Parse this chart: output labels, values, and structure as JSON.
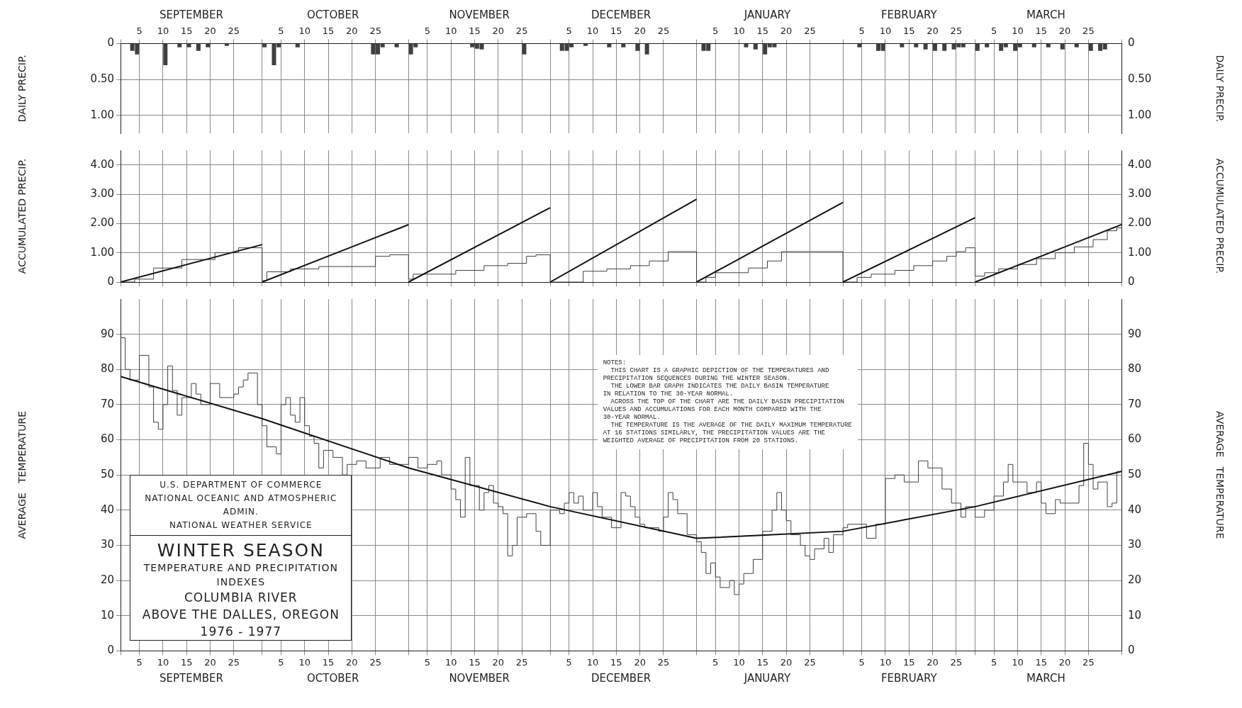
{
  "chart_data": [
    {
      "type": "bar",
      "ylabel": "DAILY PRECIP.",
      "y2label": "DAILY PRECIP.",
      "series": [
        {
          "color": "#404040",
          "x": [
            "1976-09-03",
            "1976-09-04",
            "1976-09-10",
            "1976-09-13",
            "1976-09-15",
            "1976-09-17",
            "1976-09-19",
            "1976-09-23",
            "1976-10-01",
            "1976-10-03",
            "1976-10-04",
            "1976-10-08",
            "1976-10-24",
            "1976-10-25",
            "1976-10-26",
            "1976-10-29",
            "1976-11-01",
            "1976-11-02",
            "1976-11-14",
            "1976-11-15",
            "1976-11-16",
            "1976-11-25",
            "1976-12-03",
            "1976-12-04",
            "1976-12-05",
            "1976-12-08",
            "1976-12-13",
            "1976-12-16",
            "1976-12-19",
            "1976-12-21",
            "1977-01-02",
            "1977-01-03",
            "1977-01-11",
            "1977-01-13",
            "1977-01-15",
            "1977-01-16",
            "1977-01-17",
            "1977-02-04",
            "1977-02-08",
            "1977-02-09",
            "1977-02-13",
            "1977-02-16",
            "1977-02-18",
            "1977-02-20",
            "1977-02-22",
            "1977-02-24",
            "1977-02-25",
            "1977-02-26",
            "1977-03-01",
            "1977-03-03",
            "1977-03-06",
            "1977-03-07",
            "1977-03-09",
            "1977-03-10",
            "1977-03-13",
            "1977-03-16",
            "1977-03-19",
            "1977-03-22",
            "1977-03-25",
            "1977-03-27",
            "1977-03-28"
          ],
          "values": [
            0.1,
            0.15,
            0.3,
            0.05,
            0.05,
            0.1,
            0.05,
            0.03,
            0.05,
            0.3,
            0.05,
            0.05,
            0.15,
            0.15,
            0.05,
            0.05,
            0.15,
            0.05,
            0.05,
            0.07,
            0.08,
            0.15,
            0.1,
            0.1,
            0.05,
            0.03,
            0.05,
            0.05,
            0.1,
            0.15,
            0.1,
            0.1,
            0.05,
            0.08,
            0.15,
            0.05,
            0.05,
            0.05,
            0.1,
            0.1,
            0.05,
            0.05,
            0.08,
            0.1,
            0.1,
            0.08,
            0.05,
            0.05,
            0.1,
            0.05,
            0.1,
            0.05,
            0.1,
            0.05,
            0.05,
            0.05,
            0.08,
            0.05,
            0.1,
            0.1,
            0.08
          ]
        }
      ],
      "xlim": [
        "1976-09-01",
        "1977-04-01"
      ],
      "xticks": [
        {
          "value": "1976-09-01",
          "label": null
        },
        {
          "value": "1976-09-05",
          "label": "5"
        },
        {
          "value": "1976-09-10",
          "label": "10"
        },
        {
          "value": "1976-09-15",
          "label": "15"
        },
        {
          "value": "1976-09-20",
          "label": "20"
        },
        {
          "value": "1976-09-25",
          "label": "25"
        },
        {
          "value": "1976-10-01",
          "label": null
        },
        {
          "value": "1976-10-05",
          "label": "5"
        },
        {
          "value": "1976-10-10",
          "label": "10"
        },
        {
          "value": "1976-10-15",
          "label": "15"
        },
        {
          "value": "1976-10-20",
          "label": "20"
        },
        {
          "value": "1976-10-25",
          "label": "25"
        },
        {
          "value": "1976-11-01",
          "label": null
        },
        {
          "value": "1976-11-05",
          "label": "5"
        },
        {
          "value": "1976-11-10",
          "label": "10"
        },
        {
          "value": "1976-11-15",
          "label": "15"
        },
        {
          "value": "1976-11-20",
          "label": "20"
        },
        {
          "value": "1976-11-25",
          "label": "25"
        },
        {
          "value": "1976-12-01",
          "label": null
        },
        {
          "value": "1976-12-05",
          "label": "5"
        },
        {
          "value": "1976-12-10",
          "label": "10"
        },
        {
          "value": "1976-12-15",
          "label": "15"
        },
        {
          "value": "1976-12-20",
          "label": "20"
        },
        {
          "value": "1976-12-25",
          "label": "25"
        },
        {
          "value": "1977-01-01",
          "label": null
        },
        {
          "value": "1977-01-05",
          "label": "5"
        },
        {
          "value": "1977-01-10",
          "label": "10"
        },
        {
          "value": "1977-01-15",
          "label": "15"
        },
        {
          "value": "1977-01-20",
          "label": "20"
        },
        {
          "value": "1977-01-25",
          "label": "25"
        },
        {
          "value": "1977-02-01",
          "label": null
        },
        {
          "value": "1977-02-05",
          "label": "5"
        },
        {
          "value": "1977-02-10",
          "label": "10"
        },
        {
          "value": "1977-02-15",
          "label": "15"
        },
        {
          "value": "1977-02-20",
          "label": "20"
        },
        {
          "value": "1977-02-25",
          "label": "25"
        },
        {
          "value": "1977-03-01",
          "label": null
        },
        {
          "value": "1977-03-05",
          "label": "5"
        },
        {
          "value": "1977-03-10",
          "label": "10"
        },
        {
          "value": "1977-03-15",
          "label": "15"
        },
        {
          "value": "1977-03-20",
          "label": "20"
        },
        {
          "value": "1977-03-25",
          "label": "25"
        },
        {
          "value": "1977-04-01",
          "label": null
        }
      ],
      "x2lim": [
        "1976-09-01",
        "1977-04-01"
      ],
      "x2ticks": [
        {
          "value": "1976-09-16",
          "label": "SEPTEMBER"
        },
        {
          "value": "1976-10-16",
          "label": "OCTOBER"
        },
        {
          "value": "1976-11-16",
          "label": "NOVEMBER"
        },
        {
          "value": "1976-12-16",
          "label": "DECEMBER"
        },
        {
          "value": "1977-01-16",
          "label": "JANUARY"
        },
        {
          "value": "1977-02-15",
          "label": "FEBRUARY"
        },
        {
          "value": "1977-03-16",
          "label": "MARCH"
        }
      ],
      "ylim": [
        1.25,
        0
      ],
      "yticks": [
        0,
        {
          "value": 0.5,
          "label": "0.50"
        },
        {
          "value": 1,
          "label": "1.00"
        }
      ],
      "y2lim": [
        1.25,
        0
      ],
      "y2ticks": [
        0,
        {
          "value": 0.5,
          "label": "0.50"
        },
        {
          "value": 1,
          "label": "1.00"
        }
      ],
      "grid": true
    },
    {
      "type": "line",
      "ylabel": "ACCUMULATED PRECIP.",
      "y2label": "ACCUMULATED PRECIP.",
      "series": [
        {
          "color": "#111111",
          "x": [
            "1976-09-01",
            "1976-10-01"
          ],
          "values": [
            0,
            1.28
          ]
        },
        {
          "color": "#111111",
          "x": [
            "1976-10-01",
            "1976-11-01"
          ],
          "values": [
            0,
            1.96
          ]
        },
        {
          "color": "#111111",
          "x": [
            "1976-11-01",
            "1976-12-01"
          ],
          "values": [
            0,
            2.54
          ]
        },
        {
          "color": "#111111",
          "x": [
            "1976-12-01",
            "1977-01-01"
          ],
          "values": [
            0,
            2.83
          ]
        },
        {
          "color": "#111111",
          "x": [
            "1977-01-01",
            "1977-02-01"
          ],
          "values": [
            0,
            2.72
          ]
        },
        {
          "color": "#111111",
          "x": [
            "1977-02-01",
            "1977-03-01"
          ],
          "values": [
            0,
            2.2
          ]
        },
        {
          "color": "#111111",
          "x": [
            "1977-03-01",
            "1977-04-01"
          ],
          "values": [
            0,
            1.96
          ]
        },
        {
          "type": "step",
          "color": "#404040",
          "x": [
            "1976-09-01",
            "1976-09-04",
            "1976-09-08",
            "1976-09-14",
            "1976-09-21",
            "1976-09-26",
            "1976-10-01",
            "1976-10-02",
            "1976-10-07",
            "1976-10-13",
            "1976-10-25",
            "1976-10-28",
            "1976-11-01",
            "1976-11-02",
            "1976-11-11",
            "1976-11-17",
            "1976-11-22",
            "1976-11-26",
            "1976-11-28",
            "1976-12-01",
            "1976-12-08",
            "1976-12-13",
            "1976-12-18",
            "1976-12-22",
            "1976-12-26",
            "1977-01-01",
            "1977-01-03",
            "1977-01-05",
            "1977-01-12",
            "1977-01-16",
            "1977-01-19",
            "1977-02-01",
            "1977-02-04",
            "1977-02-07",
            "1977-02-12",
            "1977-02-16",
            "1977-02-20",
            "1977-02-23",
            "1977-02-25",
            "1977-02-27",
            "1977-03-01",
            "1977-03-03",
            "1977-03-06",
            "1977-03-10",
            "1977-03-14",
            "1977-03-18",
            "1977-03-22",
            "1977-03-26",
            "1977-03-29",
            "1977-03-31",
            "1977-04-01"
          ],
          "values": [
            0,
            0.1,
            0.48,
            0.77,
            1.0,
            1.17,
            0.05,
            0.35,
            0.45,
            0.53,
            0.88,
            0.93,
            0.1,
            0.27,
            0.4,
            0.56,
            0.64,
            0.88,
            0.93,
            0,
            0.37,
            0.45,
            0.56,
            0.72,
            1.04,
            0,
            0.16,
            0.32,
            0.48,
            0.72,
            1.04,
            0,
            0.16,
            0.27,
            0.4,
            0.56,
            0.72,
            0.88,
            1.04,
            1.17,
            0.2,
            0.32,
            0.45,
            0.6,
            0.8,
            1.0,
            1.2,
            1.45,
            1.75,
            1.85,
            1.85
          ]
        }
      ],
      "xlim": [
        "1976-09-01",
        "1977-04-01"
      ],
      "xticks": [
        {
          "value": "1976-09-01",
          "label": null
        },
        {
          "value": "1976-09-05",
          "label": null
        },
        {
          "value": "1976-09-10",
          "label": null
        },
        {
          "value": "1976-09-15",
          "label": null
        },
        {
          "value": "1976-09-20",
          "label": null
        },
        {
          "value": "1976-09-25",
          "label": null
        },
        {
          "value": "1976-10-01",
          "label": null
        },
        {
          "value": "1976-10-05",
          "label": null
        },
        {
          "value": "1976-10-10",
          "label": null
        },
        {
          "value": "1976-10-15",
          "label": null
        },
        {
          "value": "1976-10-20",
          "label": null
        },
        {
          "value": "1976-10-25",
          "label": null
        },
        {
          "value": "1976-11-01",
          "label": null
        },
        {
          "value": "1976-11-05",
          "label": null
        },
        {
          "value": "1976-11-10",
          "label": null
        },
        {
          "value": "1976-11-15",
          "label": null
        },
        {
          "value": "1976-11-20",
          "label": null
        },
        {
          "value": "1976-11-25",
          "label": null
        },
        {
          "value": "1976-12-01",
          "label": null
        },
        {
          "value": "1976-12-05",
          "label": null
        },
        {
          "value": "1976-12-10",
          "label": null
        },
        {
          "value": "1976-12-15",
          "label": null
        },
        {
          "value": "1976-12-20",
          "label": null
        },
        {
          "value": "1976-12-25",
          "label": null
        },
        {
          "value": "1977-01-01",
          "label": null
        },
        {
          "value": "1977-01-05",
          "label": null
        },
        {
          "value": "1977-01-10",
          "label": null
        },
        {
          "value": "1977-01-15",
          "label": null
        },
        {
          "value": "1977-01-20",
          "label": null
        },
        {
          "value": "1977-01-25",
          "label": null
        },
        {
          "value": "1977-02-01",
          "label": null
        },
        {
          "value": "1977-02-05",
          "label": null
        },
        {
          "value": "1977-02-10",
          "label": null
        },
        {
          "value": "1977-02-15",
          "label": null
        },
        {
          "value": "1977-02-20",
          "label": null
        },
        {
          "value": "1977-02-25",
          "label": null
        },
        {
          "value": "1977-03-01",
          "label": null
        },
        {
          "value": "1977-03-05",
          "label": null
        },
        {
          "value": "1977-03-10",
          "label": null
        },
        {
          "value": "1977-03-15",
          "label": null
        },
        {
          "value": "1977-03-20",
          "label": null
        },
        {
          "value": "1977-03-25",
          "label": null
        },
        {
          "value": "1977-04-01",
          "label": null
        }
      ],
      "ylim": [
        0,
        4.5
      ],
      "yticks": [
        0,
        {
          "value": 1,
          "label": "1.00"
        },
        {
          "value": 2,
          "label": "2.00"
        },
        {
          "value": 3,
          "label": "3.00"
        },
        {
          "value": 4,
          "label": "4.00"
        }
      ],
      "y2lim": [
        0,
        4.5
      ],
      "y2ticks": [
        0,
        {
          "value": 1,
          "label": "1.00"
        },
        {
          "value": 2,
          "label": "2.00"
        },
        {
          "value": 3,
          "label": "3.00"
        },
        {
          "value": 4,
          "label": "4.00"
        }
      ],
      "tick_labels": "y",
      "grid": true
    },
    {
      "type": "line",
      "title": "WINTER SEASON",
      "subtitle": "TEMPERATURE AND PRECIPITATION INDEXES",
      "ylabel": "AVERAGE   TEMPERATURE",
      "y2label": "AVERAGE   TEMPERATURE",
      "series": [
        {
          "color": "#111111",
          "x": [
            "1976-09-01",
            "1976-10-01",
            "1976-11-01",
            "1976-12-01",
            "1977-01-01",
            "1977-01-17",
            "1977-02-01",
            "1977-03-01",
            "1977-04-01"
          ],
          "values": [
            78,
            66,
            52,
            41,
            32,
            33,
            34,
            41,
            51
          ]
        },
        {
          "type": "step",
          "color": "#404040",
          "x": [
            "1976-09-01",
            "1976-09-02",
            "1976-09-03",
            "1976-09-05",
            "1976-09-07",
            "1976-09-08",
            "1976-09-09",
            "1976-09-10",
            "1976-09-11",
            "1976-09-12",
            "1976-09-13",
            "1976-09-14",
            "1976-09-16",
            "1976-09-17",
            "1976-09-18",
            "1976-09-20",
            "1976-09-22",
            "1976-09-25",
            "1976-09-26",
            "1976-09-27",
            "1976-09-28",
            "1976-09-30",
            "1976-10-01",
            "1976-10-02",
            "1976-10-04",
            "1976-10-05",
            "1976-10-06",
            "1976-10-07",
            "1976-10-08",
            "1976-10-09",
            "1976-10-10",
            "1976-10-11",
            "1976-10-12",
            "1976-10-13",
            "1976-10-14",
            "1976-10-16",
            "1976-10-18",
            "1976-10-19",
            "1976-10-21",
            "1976-10-23",
            "1976-10-26",
            "1976-10-28",
            "1976-11-01",
            "1976-11-03",
            "1976-11-05",
            "1976-11-07",
            "1976-11-08",
            "1976-11-10",
            "1976-11-11",
            "1976-11-12",
            "1976-11-13",
            "1976-11-14",
            "1976-11-16",
            "1976-11-17",
            "1976-11-18",
            "1976-11-19",
            "1976-11-20",
            "1976-11-21",
            "1976-11-22",
            "1976-11-23",
            "1976-11-24",
            "1976-11-26",
            "1976-11-28",
            "1976-11-29",
            "1976-12-01",
            "1976-12-03",
            "1976-12-04",
            "1976-12-05",
            "1976-12-06",
            "1976-12-07",
            "1976-12-08",
            "1976-12-10",
            "1976-12-11",
            "1976-12-12",
            "1976-12-14",
            "1976-12-16",
            "1976-12-17",
            "1976-12-18",
            "1976-12-19",
            "1976-12-20",
            "1976-12-21",
            "1976-12-24",
            "1976-12-25",
            "1976-12-26",
            "1976-12-27",
            "1976-12-28",
            "1976-12-30",
            "1977-01-01",
            "1977-01-02",
            "1977-01-03",
            "1977-01-04",
            "1977-01-05",
            "1977-01-06",
            "1977-01-08",
            "1977-01-09",
            "1977-01-10",
            "1977-01-11",
            "1977-01-13",
            "1977-01-15",
            "1977-01-17",
            "1977-01-18",
            "1977-01-19",
            "1977-01-20",
            "1977-01-21",
            "1977-01-23",
            "1977-01-24",
            "1977-01-25",
            "1977-01-26",
            "1977-01-28",
            "1977-01-29",
            "1977-01-30",
            "1977-02-01",
            "1977-02-02",
            "1977-02-06",
            "1977-02-08",
            "1977-02-10",
            "1977-02-12",
            "1977-02-14",
            "1977-02-17",
            "1977-02-19",
            "1977-02-22",
            "1977-02-24",
            "1977-02-26",
            "1977-02-27",
            "1977-03-01",
            "1977-03-03",
            "1977-03-05",
            "1977-03-07",
            "1977-03-08",
            "1977-03-09",
            "1977-03-12",
            "1977-03-14",
            "1977-03-15",
            "1977-03-16",
            "1977-03-18",
            "1977-03-19",
            "1977-03-23",
            "1977-03-24",
            "1977-03-25",
            "1977-03-26",
            "1977-03-27",
            "1977-03-29",
            "1977-03-30",
            "1977-03-31",
            "1977-04-01"
          ],
          "values": [
            89,
            80,
            77,
            84,
            75,
            65,
            63,
            70,
            81,
            74,
            67,
            72,
            76,
            73,
            70,
            76,
            72,
            73,
            75,
            77,
            79,
            70,
            64,
            58,
            56,
            70,
            72,
            67,
            65,
            72,
            64,
            61,
            59,
            52,
            57,
            55,
            50,
            53,
            54,
            52,
            55,
            53,
            55,
            52,
            53,
            54,
            50,
            46,
            43,
            38,
            55,
            47,
            40,
            45,
            47,
            42,
            41,
            39,
            27,
            30,
            38,
            39,
            34,
            30,
            40,
            39,
            42,
            45,
            42,
            44,
            40,
            45,
            41,
            38,
            35,
            45,
            44,
            41,
            38,
            36,
            35,
            34,
            38,
            45,
            43,
            39,
            33,
            31,
            28,
            22,
            25,
            21,
            18,
            20,
            16,
            19,
            22,
            26,
            34,
            40,
            45,
            40,
            37,
            33,
            30,
            27,
            26,
            29,
            32,
            28,
            33,
            35,
            36,
            32,
            36,
            49,
            50,
            48,
            54,
            52,
            46,
            42,
            38,
            41,
            38,
            40,
            44,
            48,
            53,
            48,
            45,
            48,
            42,
            39,
            43,
            42,
            47,
            59,
            53,
            46,
            48,
            41,
            42,
            51,
            51
          ]
        }
      ],
      "xlim": [
        "1976-09-01",
        "1977-04-01"
      ],
      "xticks": [
        {
          "value": "1976-09-01",
          "label": null
        },
        {
          "value": "1976-09-05",
          "label": "5"
        },
        {
          "value": "1976-09-10",
          "label": "10"
        },
        {
          "value": "1976-09-15",
          "label": "15"
        },
        {
          "value": "1976-09-20",
          "label": "20"
        },
        {
          "value": "1976-09-25",
          "label": "25"
        },
        {
          "value": "1976-10-01",
          "label": null
        },
        {
          "value": "1976-10-05",
          "label": "5"
        },
        {
          "value": "1976-10-10",
          "label": "10"
        },
        {
          "value": "1976-10-15",
          "label": "15"
        },
        {
          "value": "1976-10-20",
          "label": "20"
        },
        {
          "value": "1976-10-25",
          "label": "25"
        },
        {
          "value": "1976-11-01",
          "label": null
        },
        {
          "value": "1976-11-05",
          "label": "5"
        },
        {
          "value": "1976-11-10",
          "label": "10"
        },
        {
          "value": "1976-11-15",
          "label": "15"
        },
        {
          "value": "1976-11-20",
          "label": "20"
        },
        {
          "value": "1976-11-25",
          "label": "25"
        },
        {
          "value": "1976-12-01",
          "label": null
        },
        {
          "value": "1976-12-05",
          "label": "5"
        },
        {
          "value": "1976-12-10",
          "label": "10"
        },
        {
          "value": "1976-12-15",
          "label": "15"
        },
        {
          "value": "1976-12-20",
          "label": "20"
        },
        {
          "value": "1976-12-25",
          "label": "25"
        },
        {
          "value": "1977-01-01",
          "label": null
        },
        {
          "value": "1977-01-05",
          "label": "5"
        },
        {
          "value": "1977-01-10",
          "label": "10"
        },
        {
          "value": "1977-01-15",
          "label": "15"
        },
        {
          "value": "1977-01-20",
          "label": "20"
        },
        {
          "value": "1977-01-25",
          "label": "25"
        },
        {
          "value": "1977-02-01",
          "label": null
        },
        {
          "value": "1977-02-05",
          "label": "5"
        },
        {
          "value": "1977-02-10",
          "label": "10"
        },
        {
          "value": "1977-02-15",
          "label": "15"
        },
        {
          "value": "1977-02-20",
          "label": "20"
        },
        {
          "value": "1977-02-25",
          "label": "25"
        },
        {
          "value": "1977-03-01",
          "label": null
        },
        {
          "value": "1977-03-05",
          "label": "5"
        },
        {
          "value": "1977-03-10",
          "label": "10"
        },
        {
          "value": "1977-03-15",
          "label": "15"
        },
        {
          "value": "1977-03-20",
          "label": "20"
        },
        {
          "value": "1977-03-25",
          "label": "25"
        },
        {
          "value": "1977-04-01",
          "label": null
        }
      ],
      "x2lim": [
        "1976-09-01",
        "1977-04-01"
      ],
      "x2ticks": [
        {
          "value": "1976-09-16",
          "label": "SEPTEMBER"
        },
        {
          "value": "1976-10-16",
          "label": "OCTOBER"
        },
        {
          "value": "1976-11-16",
          "label": "NOVEMBER"
        },
        {
          "value": "1976-12-16",
          "label": "DECEMBER"
        },
        {
          "value": "1977-01-16",
          "label": "JANUARY"
        },
        {
          "value": "1977-02-15",
          "label": "FEBRUARY"
        },
        {
          "value": "1977-03-16",
          "label": "MARCH"
        }
      ],
      "ylim": [
        0,
        100
      ],
      "yticks": [
        0,
        10,
        20,
        30,
        40,
        50,
        60,
        70,
        80,
        90
      ],
      "y2lim": [
        0,
        100
      ],
      "y2ticks": [
        0,
        10,
        20,
        30,
        40,
        50,
        60,
        70,
        80,
        90
      ],
      "grid": true,
      "annotations": [
        "U.S. DEPARTMENT OF COMMERCE",
        "NATIONAL OCEANIC AND ATMOSPHERIC ADMIN.",
        "NATIONAL WEATHER SERVICE",
        "COLUMBIA RIVER",
        "ABOVE THE DALLES, OREGON",
        "1976 - 1977",
        "NOTES:\n  THIS CHART IS A GRAPHIC DEPICTION OF THE TEMPERATURES AND\nPRECIPITATION SEQUENCES DURING THE WINTER SEASON.\n  THE LOWER BAR GRAPH INDICATES THE DAILY BASIN TEMPERATURE\nIN RELATION TO THE 30-YEAR NORMAL.\n  ACROSS THE TOP OF THE CHART ARE THE DAILY BASIN PRECIPITATION\nVALUES AND ACCUMULATIONS FOR EACH MONTH COMPARED WITH THE\n30-YEAR NORMAL.\n  THE TEMPERATURE IS THE AVERAGE OF THE DAILY MAXIMUM TEMPERATURE\nAT 16 STATIONS SIMILARLY, THE PRECIPITATION VALUES ARE THE\nWEIGHTED AVERAGE OF PRECIPITATION FROM 20 STATIONS."
      ]
    }
  ]
}
